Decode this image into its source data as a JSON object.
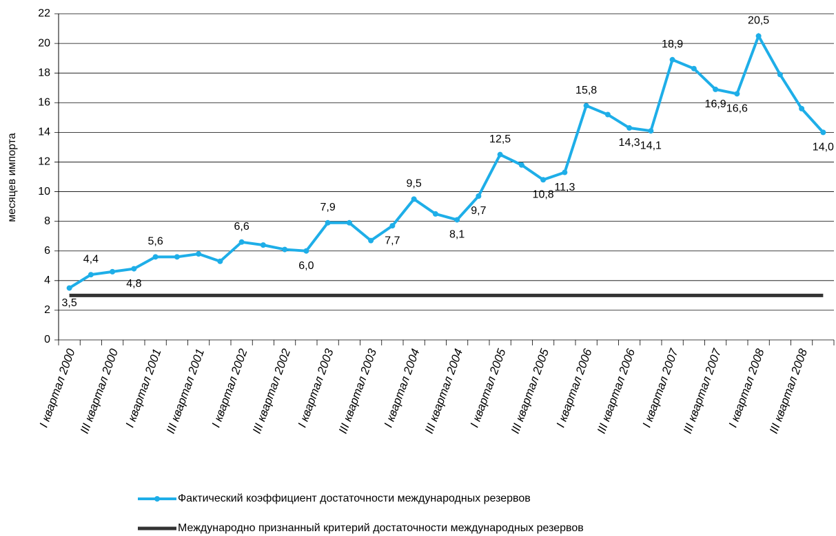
{
  "chart_data": {
    "type": "line",
    "y_label": "месяцев импорта",
    "categories": [
      "I квартал 2000",
      null,
      "III квартал 2000",
      null,
      "I квартал 2001",
      null,
      "III квартал 2001",
      null,
      "I квартал 2002",
      null,
      "III квартал 2002",
      null,
      "I квартал 2003",
      null,
      "III квартал 2003",
      null,
      "I квартал 2004",
      null,
      "III квартал 2004",
      null,
      "I квартал 2005",
      null,
      "III квартал 2005",
      null,
      "I квартал 2006",
      null,
      "III квартал 2006",
      null,
      "I квартал 2007",
      null,
      "III квартал 2007",
      null,
      "I квартал 2008",
      null,
      "III квартал 2008",
      null
    ],
    "series": [
      {
        "name": "Фактический коэффициент достаточности международных резервов",
        "color": "#1eaee8",
        "markers": true,
        "values": [
          3.5,
          4.4,
          4.6,
          4.8,
          5.6,
          5.6,
          5.8,
          5.3,
          6.6,
          6.4,
          6.1,
          6.0,
          7.9,
          7.9,
          6.7,
          7.7,
          9.5,
          8.5,
          8.1,
          9.7,
          12.5,
          11.8,
          10.8,
          11.3,
          15.8,
          15.2,
          14.3,
          14.1,
          18.9,
          18.3,
          16.9,
          16.6,
          20.5,
          17.9,
          15.6,
          14.0
        ],
        "value_labels": [
          "3,5",
          "4,4",
          null,
          "4,8",
          "5,6",
          null,
          null,
          null,
          "6,6",
          null,
          null,
          "6,0",
          "7,9",
          null,
          null,
          "7,7",
          "9,5",
          null,
          "8,1",
          "9,7",
          "12,5",
          null,
          "10,8",
          "11,3",
          "15,8",
          null,
          "14,3",
          "14,1",
          "18,9",
          null,
          "16,9",
          "16,6",
          "20,5",
          null,
          null,
          "14,0"
        ]
      },
      {
        "name": "Международно признанный критерий достаточности международных резервов",
        "color": "#333333",
        "markers": false,
        "values": [
          3,
          3,
          3,
          3,
          3,
          3,
          3,
          3,
          3,
          3,
          3,
          3,
          3,
          3,
          3,
          3,
          3,
          3,
          3,
          3,
          3,
          3,
          3,
          3,
          3,
          3,
          3,
          3,
          3,
          3,
          3,
          3,
          3,
          3,
          3,
          3
        ]
      }
    ],
    "ylim": [
      0,
      22
    ],
    "yticks": [
      0,
      2,
      4,
      6,
      8,
      10,
      12,
      14,
      16,
      18,
      20,
      22
    ],
    "grid": true,
    "legend": "bottom"
  }
}
